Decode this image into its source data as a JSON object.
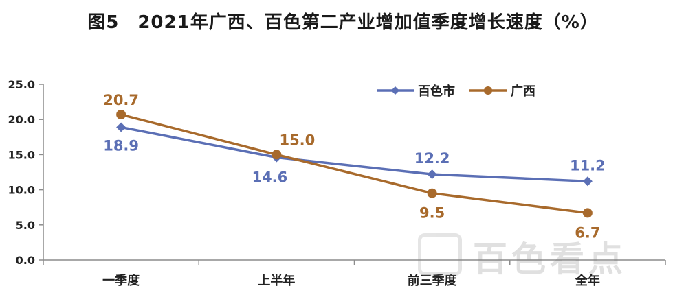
{
  "chart_data": {
    "type": "line",
    "title": "图5　2021年广西、百色第二产业增加值季度增长速度（%）",
    "categories": [
      "一季度",
      "上半年",
      "前三季度",
      "全年"
    ],
    "ylim": [
      0,
      25
    ],
    "yticks": [
      "0.0",
      "5.0",
      "10.0",
      "15.0",
      "20.0",
      "25.0"
    ],
    "grid": false,
    "legend_position": "top-right",
    "series": [
      {
        "name": "百色市",
        "values": [
          18.9,
          14.6,
          12.2,
          11.2
        ],
        "labels": [
          "18.9",
          "14.6",
          "12.2",
          "11.2"
        ],
        "color": "#5b6fb5",
        "marker": "diamond"
      },
      {
        "name": "广西",
        "values": [
          20.7,
          15.0,
          9.5,
          6.7
        ],
        "labels": [
          "20.7",
          "15.0",
          "9.5",
          "6.7"
        ],
        "color": "#a86a2c",
        "marker": "circle"
      }
    ]
  },
  "watermark": {
    "text": "百色看点"
  }
}
